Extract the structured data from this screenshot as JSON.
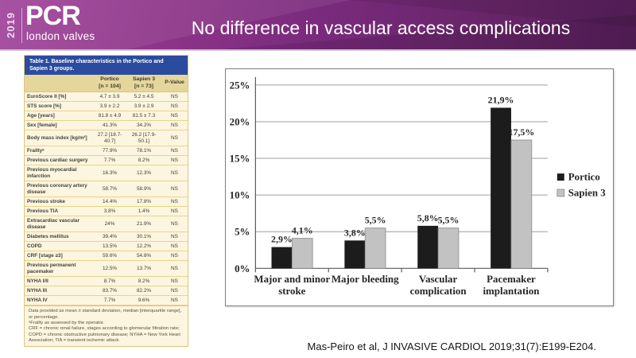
{
  "slide": {
    "year_badge": "2019",
    "logo_main": "PCR",
    "logo_sub": "london valves",
    "title": "No difference in vascular access complications",
    "citation": "Mas-Peiro et al, J INVASIVE CARDIOL 2019;31(7):E199-E204."
  },
  "table": {
    "title": "Table 1. Baseline characteristics in the Portico and Sapien 3 groups.",
    "columns": [
      {
        "title": "",
        "sub": ""
      },
      {
        "title": "Portico",
        "sub": "[n = 104]"
      },
      {
        "title": "Sapien 3",
        "sub": "[n = 73]"
      },
      {
        "title": "P-Value",
        "sub": ""
      }
    ],
    "rows": [
      {
        "label": "EuroScore II [%]",
        "portico": "4.7 ± 3.9",
        "sapien3": "5.2 ± 4.5",
        "p": "NS"
      },
      {
        "label": "STS score [%]",
        "portico": "3.9 ± 2.2",
        "sapien3": "3.9 ± 2.9",
        "p": "NS"
      },
      {
        "label": "Age [years]",
        "portico": "81.8 ± 4.9",
        "sapien3": "81.5 ± 7.3",
        "p": "NS"
      },
      {
        "label": "Sex [female]",
        "portico": "41.3%",
        "sapien3": "34.2%",
        "p": "NS"
      },
      {
        "label": "Body mass index [kg/m²]",
        "portico": "27.2 [18.7-40.7]",
        "sapien3": "26.2 [17.9-50.1]",
        "p": "NS"
      },
      {
        "label": "Frailtyᵃ",
        "portico": "77.9%",
        "sapien3": "78.1%",
        "p": "NS"
      },
      {
        "label": "Previous cardiac surgery",
        "portico": "7.7%",
        "sapien3": "8.2%",
        "p": "NS"
      },
      {
        "label": "Previous myocardial infarction",
        "portico": "16.3%",
        "sapien3": "12.3%",
        "p": "NS"
      },
      {
        "label": "Previous coronary artery disease",
        "portico": "58.7%",
        "sapien3": "58.9%",
        "p": "NS"
      },
      {
        "label": "Previous stroke",
        "portico": "14.4%",
        "sapien3": "17.8%",
        "p": "NS"
      },
      {
        "label": "Previous TIA",
        "portico": "3.8%",
        "sapien3": "1.4%",
        "p": "NS"
      },
      {
        "label": "Extracardiac vascular disease",
        "portico": "24%",
        "sapien3": "21.9%",
        "p": "NS"
      },
      {
        "label": "Diabetes mellitus",
        "portico": "39.4%",
        "sapien3": "30.1%",
        "p": "NS"
      },
      {
        "label": "COPD",
        "portico": "13.5%",
        "sapien3": "12.2%",
        "p": "NS"
      },
      {
        "label": "CRF [stage ≥3]",
        "portico": "59.6%",
        "sapien3": "54.8%",
        "p": "NS"
      },
      {
        "label": "Previous permanent pacemaker",
        "portico": "12.5%",
        "sapien3": "13.7%",
        "p": "NS"
      },
      {
        "label": "NYHA I/II",
        "portico": "8.7%",
        "sapien3": "8.2%",
        "p": "NS"
      },
      {
        "label": "NYHA III",
        "portico": "83.7%",
        "sapien3": "82.2%",
        "p": "NS"
      },
      {
        "label": "NYHA IV",
        "portico": "7.7%",
        "sapien3": "9.6%",
        "p": "NS"
      }
    ],
    "footnotes": [
      "Data provided as mean ± standard deviation, median [interquartile range], or percentage.",
      "ᵃFrailty as assessed by the operator.",
      "CRF = chronic renal failure, stages according to glomerular filtration rate; COPD = chronic obstructive pulmonary disease; NYHA = New York Heart Association; TIA = transient ischemic attack."
    ]
  },
  "chart_data": {
    "type": "bar",
    "categories": [
      "Major and minor stroke",
      "Major bleeding",
      "Vascular complication",
      "Pacemaker implantation"
    ],
    "category_lines": [
      [
        "Major and minor",
        "stroke"
      ],
      [
        "Major bleeding"
      ],
      [
        "Vascular",
        "complication"
      ],
      [
        "Pacemaker",
        "implantation"
      ]
    ],
    "series": [
      {
        "name": "Portico",
        "color": "#1c1c1c",
        "values": [
          2.9,
          3.8,
          5.8,
          21.9
        ],
        "labels": [
          "2,9%",
          "3,8%",
          "5,8%",
          "21,9%"
        ]
      },
      {
        "name": "Sapien 3",
        "color": "#c2c2c2",
        "values": [
          4.1,
          5.5,
          5.5,
          17.5
        ],
        "labels": [
          "4,1%",
          "5,5%",
          "5,5%",
          "17,5%"
        ]
      }
    ],
    "ylabel": "",
    "xlabel": "",
    "ylim": [
      0,
      25
    ],
    "yticks": [
      "0%",
      "5%",
      "10%",
      "15%",
      "20%",
      "25%"
    ],
    "grid": true,
    "legend_position": "right"
  }
}
